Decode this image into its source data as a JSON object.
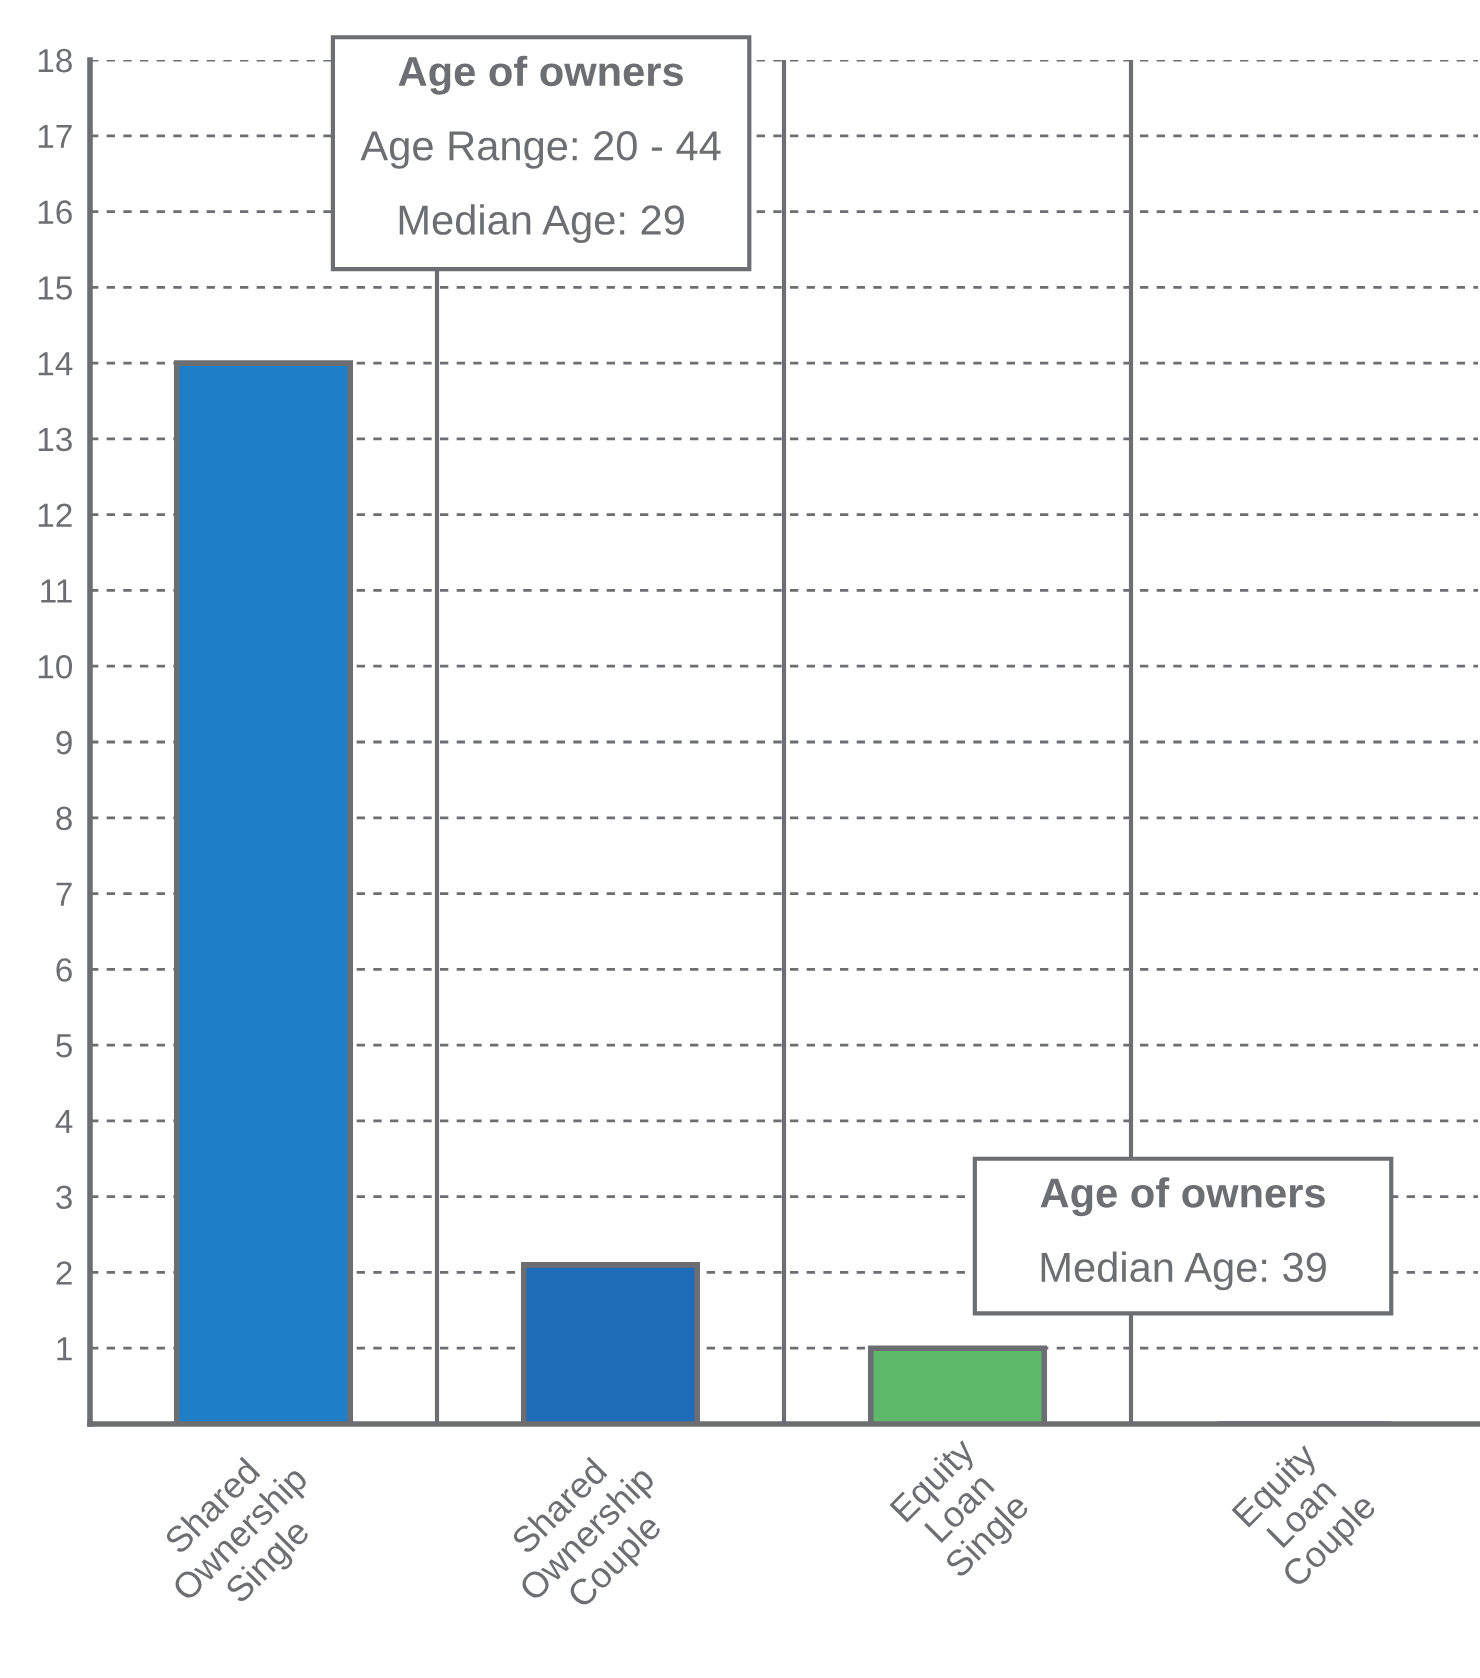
{
  "chart_data": {
    "type": "bar",
    "categories": [
      "Shared\nOwnership\nSingle",
      "Shared\nOwnership\nCouple",
      "Equity\nLoan\nSingle",
      "Equity\nLoan\nCouple"
    ],
    "values": [
      14,
      2.1,
      1,
      0
    ],
    "colors": [
      "#1e7fc8",
      "#1e6bb8",
      "#5db86a",
      "#1e7fc8"
    ],
    "ylim": [
      0,
      18
    ],
    "yticks": [
      1,
      2,
      3,
      4,
      5,
      6,
      7,
      8,
      9,
      10,
      11,
      12,
      13,
      14,
      15,
      16,
      17,
      18
    ],
    "grid": "y",
    "annotations": [
      "Age of owners",
      "Age Range: 20 - 44",
      "Median Age: 29",
      "Age of owners",
      "Median Age: 39"
    ]
  }
}
